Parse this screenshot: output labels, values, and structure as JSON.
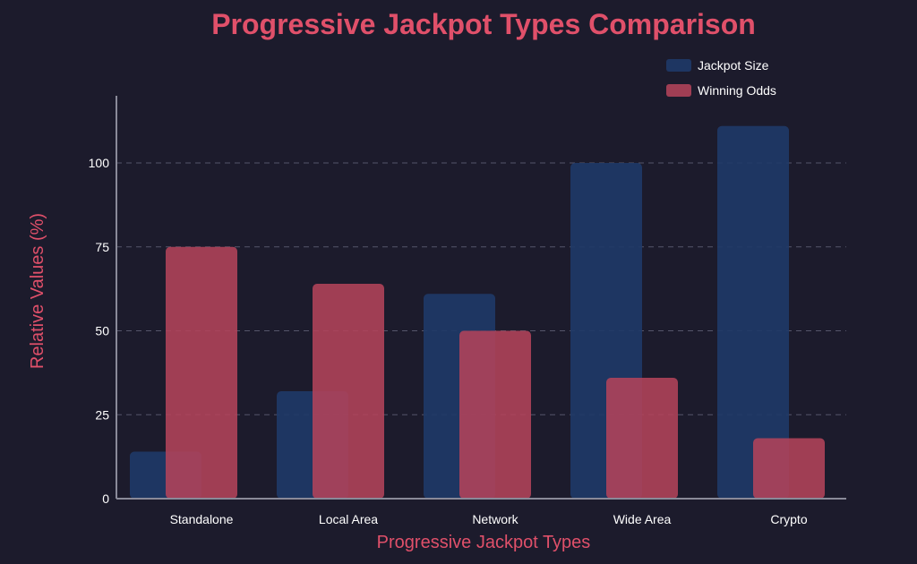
{
  "colors": {
    "background": "#1c1b2c",
    "accent": "#e0506a",
    "text": "#ffffff",
    "grid": "#55556a",
    "axis": "#8a8a99",
    "jackpot": "#1f3a68",
    "odds": "#b3435a"
  },
  "chart_data": {
    "type": "bar",
    "title": "Progressive Jackpot Types Comparison",
    "xlabel": "Progressive Jackpot Types",
    "ylabel": "Relative Values (%)",
    "categories": [
      "Standalone",
      "Local Area",
      "Network",
      "Wide Area",
      "Crypto"
    ],
    "series": [
      {
        "name": "Jackpot Size",
        "values": [
          14,
          32,
          61,
          100,
          111
        ]
      },
      {
        "name": "Winning Odds",
        "values": [
          75,
          64,
          50,
          36,
          18
        ]
      }
    ],
    "ylim": [
      0,
      120
    ],
    "yticks": [
      0,
      25,
      50,
      75,
      100
    ],
    "grid": true,
    "legend_position": "top-right"
  }
}
